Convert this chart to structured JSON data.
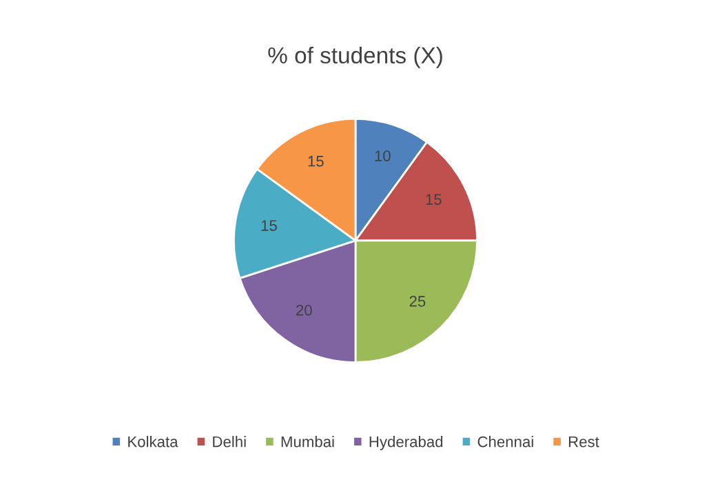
{
  "chart_data": {
    "type": "pie",
    "title": "% of students (X)",
    "categories": [
      "Kolkata",
      "Delhi",
      "Mumbai",
      "Hyderabad",
      "Chennai",
      "Rest"
    ],
    "values": [
      10,
      15,
      25,
      20,
      15,
      15
    ],
    "colors": [
      "#4f81bd",
      "#c0504d",
      "#9bbb59",
      "#8064a2",
      "#4bacc6",
      "#f79646"
    ],
    "data_labels": true,
    "legend": "bottom"
  }
}
